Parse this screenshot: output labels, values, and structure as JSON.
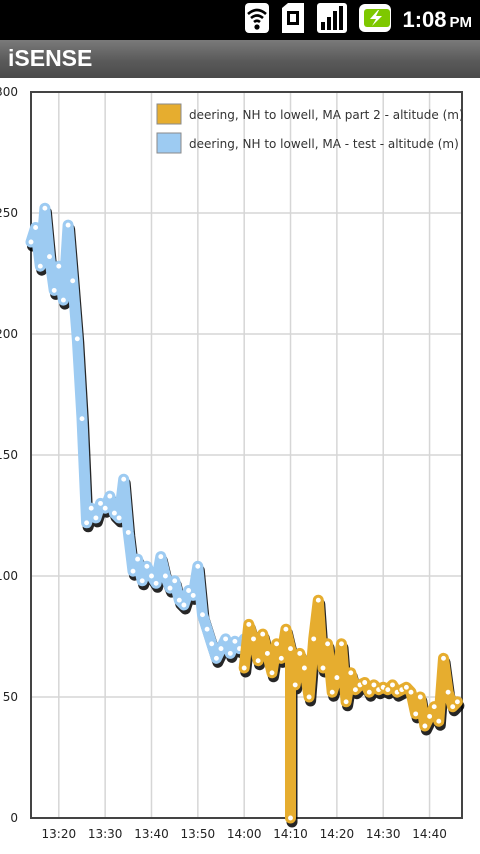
{
  "status_bar": {
    "time": "1:08",
    "ampm": "PM",
    "icons": [
      "wifi-icon",
      "sim-icon",
      "signal-icon",
      "battery-charging-icon"
    ],
    "battery_color": "#7ec800"
  },
  "app": {
    "title": "iSENSE"
  },
  "colors": {
    "series_orange": "#e6ad2f",
    "series_blue": "#9dcbf2",
    "grid": "#d6d6d6",
    "frame": "#444444"
  },
  "chart_data": {
    "type": "line",
    "title": "",
    "xlabel": "",
    "ylabel": "",
    "ylim": [
      0,
      300
    ],
    "yticks": [
      "0",
      "50",
      "100",
      "150",
      "200",
      "250",
      "300"
    ],
    "xlim": [
      "13:14",
      "14:47"
    ],
    "xticks": [
      "13:20",
      "13:30",
      "13:40",
      "13:50",
      "14:00",
      "14:10",
      "14:20",
      "14:30",
      "14:40"
    ],
    "grid": true,
    "legend_position": "top-right",
    "series": [
      {
        "name": "deering, NH to lowell, MA part 2 - altitude (m)",
        "color": "#e6ad2f",
        "x": [
          "14:00",
          "14:01",
          "14:02",
          "14:03",
          "14:04",
          "14:05",
          "14:06",
          "14:07",
          "14:08",
          "14:09",
          "14:10",
          "14:10",
          "14:10",
          "14:11",
          "14:12",
          "14:13",
          "14:14",
          "14:15",
          "14:16",
          "14:17",
          "14:18",
          "14:19",
          "14:20",
          "14:21",
          "14:22",
          "14:23",
          "14:24",
          "14:25",
          "14:26",
          "14:27",
          "14:28",
          "14:29",
          "14:30",
          "14:31",
          "14:32",
          "14:33",
          "14:34",
          "14:35",
          "14:36",
          "14:37",
          "14:38",
          "14:39",
          "14:40",
          "14:41",
          "14:42",
          "14:43",
          "14:44",
          "14:45",
          "14:46"
        ],
        "values": [
          62,
          80,
          74,
          65,
          76,
          68,
          60,
          72,
          66,
          78,
          70,
          0,
          70,
          55,
          68,
          62,
          50,
          74,
          90,
          62,
          72,
          52,
          58,
          72,
          48,
          60,
          53,
          55,
          56,
          52,
          55,
          53,
          54,
          53,
          55,
          52,
          53,
          54,
          52,
          43,
          50,
          38,
          42,
          46,
          40,
          66,
          52,
          46,
          48
        ]
      },
      {
        "name": "deering, NH to lowell, MA - test - altitude (m)",
        "color": "#9dcbf2",
        "x": [
          "13:14",
          "13:15",
          "13:16",
          "13:17",
          "13:18",
          "13:19",
          "13:20",
          "13:21",
          "13:22",
          "13:23",
          "13:24",
          "13:25",
          "13:26",
          "13:27",
          "13:28",
          "13:29",
          "13:30",
          "13:31",
          "13:32",
          "13:33",
          "13:34",
          "13:35",
          "13:36",
          "13:37",
          "13:38",
          "13:39",
          "13:40",
          "13:41",
          "13:42",
          "13:43",
          "13:44",
          "13:45",
          "13:46",
          "13:47",
          "13:48",
          "13:49",
          "13:50",
          "13:51",
          "13:52",
          "13:53",
          "13:54",
          "13:55",
          "13:56",
          "13:57",
          "13:58",
          "13:59",
          "14:00"
        ],
        "values": [
          238,
          244,
          228,
          252,
          232,
          218,
          228,
          214,
          245,
          222,
          198,
          165,
          122,
          128,
          124,
          130,
          128,
          133,
          126,
          124,
          140,
          118,
          102,
          107,
          98,
          104,
          100,
          97,
          108,
          100,
          95,
          98,
          90,
          88,
          94,
          92,
          104,
          84,
          78,
          72,
          66,
          70,
          74,
          68,
          73,
          70,
          74
        ]
      }
    ]
  }
}
